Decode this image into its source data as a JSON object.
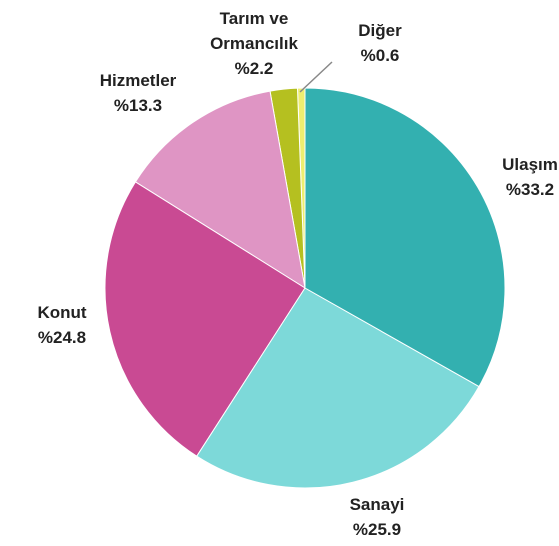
{
  "chart_data": {
    "type": "pie",
    "categories": [
      "Ulaşım",
      "Sanayi",
      "Konut",
      "Hizmetler",
      "Tarım ve Ormancılık",
      "Diğer"
    ],
    "values": [
      33.2,
      25.9,
      24.8,
      13.3,
      2.2,
      0.6
    ],
    "value_labels": [
      "%33.2",
      "%25.9",
      "%24.8",
      "%13.3",
      "%2.2",
      "%0.6"
    ],
    "colors": [
      "#33b0b0",
      "#7dd9d9",
      "#c94a93",
      "#df95c4",
      "#b5c020",
      "#eeee70"
    ]
  }
}
